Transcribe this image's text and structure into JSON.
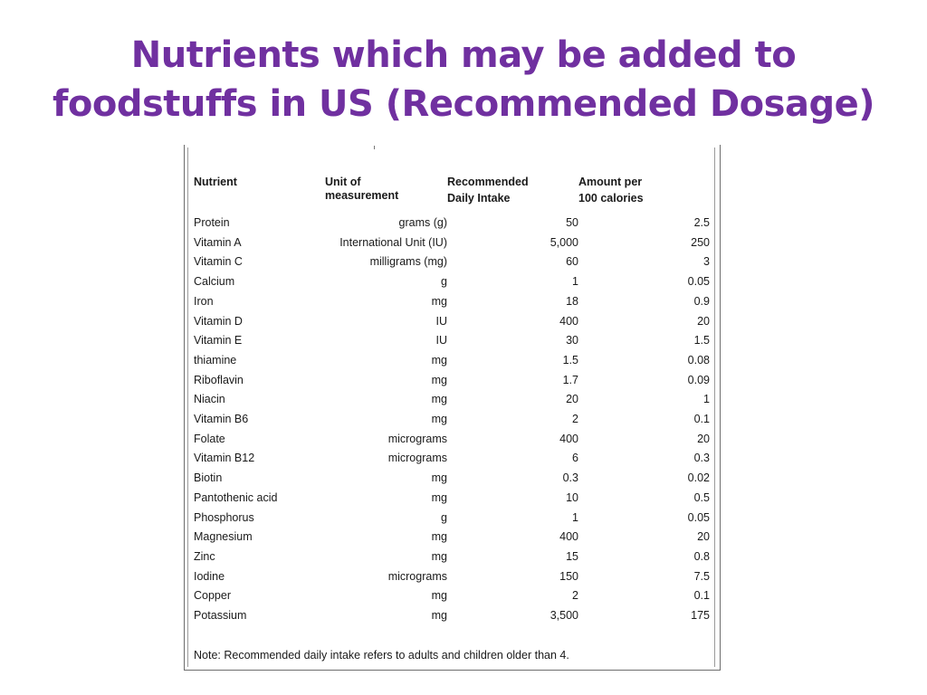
{
  "slide": {
    "title_line1": "Nutrients which may be added to",
    "title_line2": "foodstuffs in US (Recommended Dosage)",
    "title_color": "#7030A0"
  },
  "table": {
    "headers": {
      "nutrient": "Nutrient",
      "unit_line1": "Unit of",
      "unit_line2": "measurement",
      "rdi_line1": "Recommended",
      "rdi_line2": "Daily Intake",
      "per100_line1": "Amount per",
      "per100_line2": "100 calories"
    },
    "rows": [
      {
        "nutrient": "Protein",
        "unit": "grams (g)",
        "rdi": "50",
        "per100": "2.5"
      },
      {
        "nutrient": "Vitamin A",
        "unit": "International Unit (IU)",
        "rdi": "5,000",
        "per100": "250"
      },
      {
        "nutrient": "Vitamin C",
        "unit": "milligrams (mg)",
        "rdi": "60",
        "per100": "3"
      },
      {
        "nutrient": "Calcium",
        "unit": "g",
        "rdi": "1",
        "per100": "0.05"
      },
      {
        "nutrient": "Iron",
        "unit": "mg",
        "rdi": "18",
        "per100": "0.9"
      },
      {
        "nutrient": "Vitamin D",
        "unit": "IU",
        "rdi": "400",
        "per100": "20"
      },
      {
        "nutrient": "Vitamin E",
        "unit": "IU",
        "rdi": "30",
        "per100": "1.5"
      },
      {
        "nutrient": "thiamine",
        "unit": "mg",
        "rdi": "1.5",
        "per100": "0.08"
      },
      {
        "nutrient": "Riboflavin",
        "unit": "mg",
        "rdi": "1.7",
        "per100": "0.09"
      },
      {
        "nutrient": "Niacin",
        "unit": "mg",
        "rdi": "20",
        "per100": "1"
      },
      {
        "nutrient": "Vitamin B6",
        "unit": "mg",
        "rdi": "2",
        "per100": "0.1"
      },
      {
        "nutrient": "Folate",
        "unit": "micrograms",
        "rdi": "400",
        "per100": "20"
      },
      {
        "nutrient": "Vitamin B12",
        "unit": "micrograms",
        "rdi": "6",
        "per100": "0.3"
      },
      {
        "nutrient": "Biotin",
        "unit": "mg",
        "rdi": "0.3",
        "per100": "0.02"
      },
      {
        "nutrient": "Pantothenic acid",
        "unit": "mg",
        "rdi": "10",
        "per100": "0.5"
      },
      {
        "nutrient": "Phosphorus",
        "unit": "g",
        "rdi": "1",
        "per100": "0.05"
      },
      {
        "nutrient": "Magnesium",
        "unit": "mg",
        "rdi": "400",
        "per100": "20"
      },
      {
        "nutrient": "Zinc",
        "unit": "mg",
        "rdi": "15",
        "per100": "0.8"
      },
      {
        "nutrient": "Iodine",
        "unit": "micrograms",
        "rdi": "150",
        "per100": "7.5"
      },
      {
        "nutrient": "Copper",
        "unit": "mg",
        "rdi": "2",
        "per100": "0.1"
      },
      {
        "nutrient": "Potassium",
        "unit": "mg",
        "rdi": "3,500",
        "per100": "175"
      }
    ],
    "note": "Note: Recommended daily intake refers to adults and children older than 4."
  }
}
